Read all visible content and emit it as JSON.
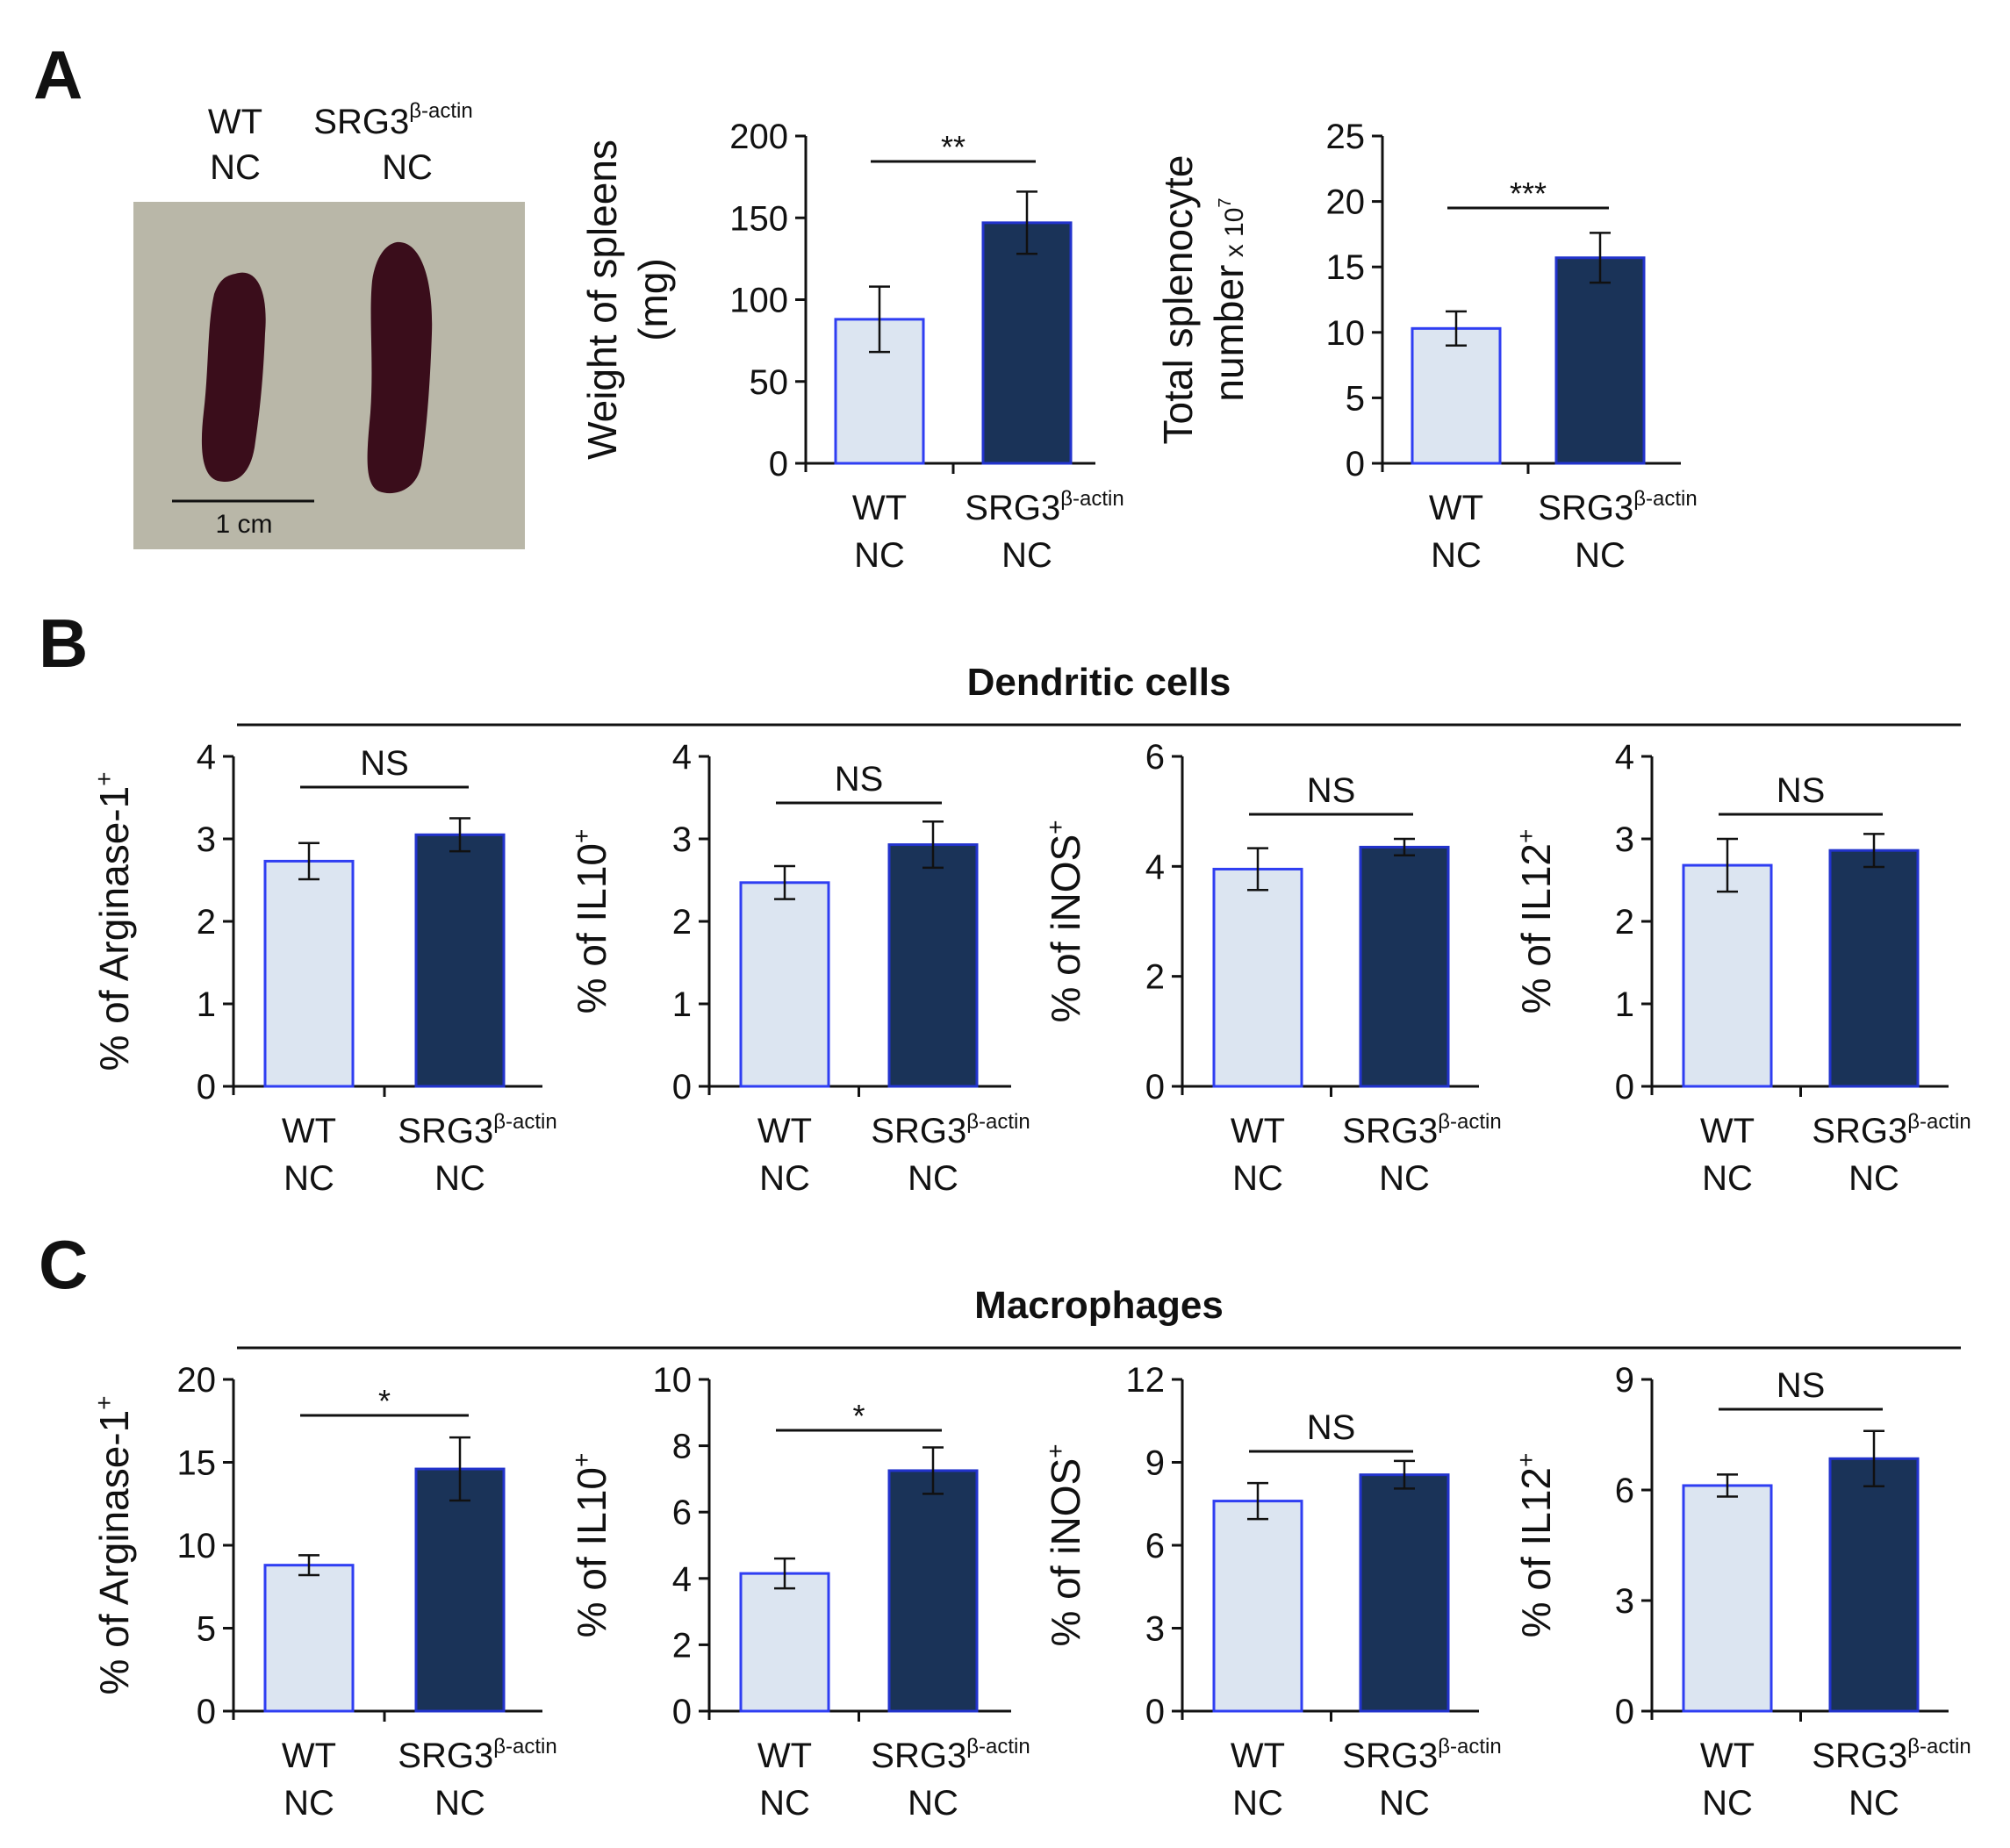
{
  "panels": {
    "A": "A",
    "B": "B",
    "C": "C"
  },
  "colors": {
    "wt_fill": "#dce5f1",
    "wt_stroke": "#2f3ef2",
    "srg_fill": "#1a3358",
    "srg_stroke": "#2233cc",
    "axis": "#111111"
  },
  "photo": {
    "wt_label_1": "WT",
    "wt_label_2": "NC",
    "srg_label_1": "SRG3",
    "srg_label_sup": "β-actin",
    "srg_label_2": "NC",
    "scale_label": "1 cm"
  },
  "section_b_title": "Dendritic cells",
  "section_c_title": "Macrophages",
  "categories": [
    {
      "line1": "WT",
      "sup": "",
      "line2": "NC"
    },
    {
      "line1": "SRG3",
      "sup": "β-actin",
      "line2": "NC"
    }
  ],
  "chart_data": [
    {
      "id": "a1",
      "type": "bar",
      "ylabel": "Weight of spleens",
      "ylabel2": "(mg)",
      "ylabel_sup": "",
      "ylabel_tail": "",
      "ylim": [
        0,
        200
      ],
      "ticks": [
        "0",
        "50",
        "100",
        "150",
        "200"
      ],
      "values": [
        88,
        147
      ],
      "errors": [
        20,
        19
      ],
      "significance": "**"
    },
    {
      "id": "a2",
      "type": "bar",
      "ylabel": "Total splenocyte",
      "ylabel2": "number",
      "ylabel_sup": "",
      "ylabel_tail": "x 10",
      "ylabel_tail_sup": "7",
      "ylim": [
        0,
        25
      ],
      "ticks": [
        "0",
        "5",
        "10",
        "15",
        "20",
        "25"
      ],
      "values": [
        10.3,
        15.7
      ],
      "errors": [
        1.3,
        1.9
      ],
      "significance": "***"
    },
    {
      "id": "b1",
      "type": "bar",
      "ylabel": "% of Arginase-1",
      "ylabel_sup": "+",
      "ylim": [
        0,
        4
      ],
      "ticks": [
        "0",
        "1",
        "2",
        "3",
        "4"
      ],
      "values": [
        2.73,
        3.05
      ],
      "errors": [
        0.22,
        0.2
      ],
      "significance": "NS"
    },
    {
      "id": "b2",
      "type": "bar",
      "ylabel": "% of IL10",
      "ylabel_sup": "+",
      "ylim": [
        0,
        4
      ],
      "ticks": [
        "0",
        "1",
        "2",
        "3",
        "4"
      ],
      "values": [
        2.47,
        2.93
      ],
      "errors": [
        0.2,
        0.28
      ],
      "significance": "NS"
    },
    {
      "id": "b3",
      "type": "bar",
      "ylabel": "% of iNOS",
      "ylabel_sup": "+",
      "ylim": [
        0,
        6
      ],
      "ticks": [
        "0",
        "2",
        "4",
        "6"
      ],
      "values": [
        3.95,
        4.35
      ],
      "errors": [
        0.38,
        0.15
      ],
      "significance": "NS"
    },
    {
      "id": "b4",
      "type": "bar",
      "ylabel": "% of IL12",
      "ylabel_sup": "+",
      "ylim": [
        0,
        4
      ],
      "ticks": [
        "0",
        "1",
        "2",
        "3",
        "4"
      ],
      "values": [
        2.68,
        2.86
      ],
      "errors": [
        0.32,
        0.2
      ],
      "significance": "NS"
    },
    {
      "id": "c1",
      "type": "bar",
      "ylabel": "% of Arginase-1",
      "ylabel_sup": "+",
      "ylim": [
        0,
        20
      ],
      "ticks": [
        "0",
        "5",
        "10",
        "15",
        "20"
      ],
      "values": [
        8.8,
        14.6
      ],
      "errors": [
        0.6,
        1.9
      ],
      "significance": "*"
    },
    {
      "id": "c2",
      "type": "bar",
      "ylabel": "% of IL10",
      "ylabel_sup": "+",
      "ylim": [
        0,
        10
      ],
      "ticks": [
        "0",
        "2",
        "4",
        "6",
        "8",
        "10"
      ],
      "values": [
        4.15,
        7.25
      ],
      "errors": [
        0.45,
        0.7
      ],
      "significance": "*"
    },
    {
      "id": "c3",
      "type": "bar",
      "ylabel": "% of iNOS",
      "ylabel_sup": "+",
      "ylim": [
        0,
        12
      ],
      "ticks": [
        "0",
        "3",
        "6",
        "9",
        "12"
      ],
      "values": [
        7.6,
        8.55
      ],
      "errors": [
        0.65,
        0.5
      ],
      "significance": "NS"
    },
    {
      "id": "c4",
      "type": "bar",
      "ylabel": "% of IL12",
      "ylabel_sup": "+",
      "ylim": [
        0,
        9
      ],
      "ticks": [
        "0",
        "3",
        "6",
        "9"
      ],
      "values": [
        6.12,
        6.85
      ],
      "errors": [
        0.3,
        0.75
      ],
      "significance": "NS"
    }
  ]
}
